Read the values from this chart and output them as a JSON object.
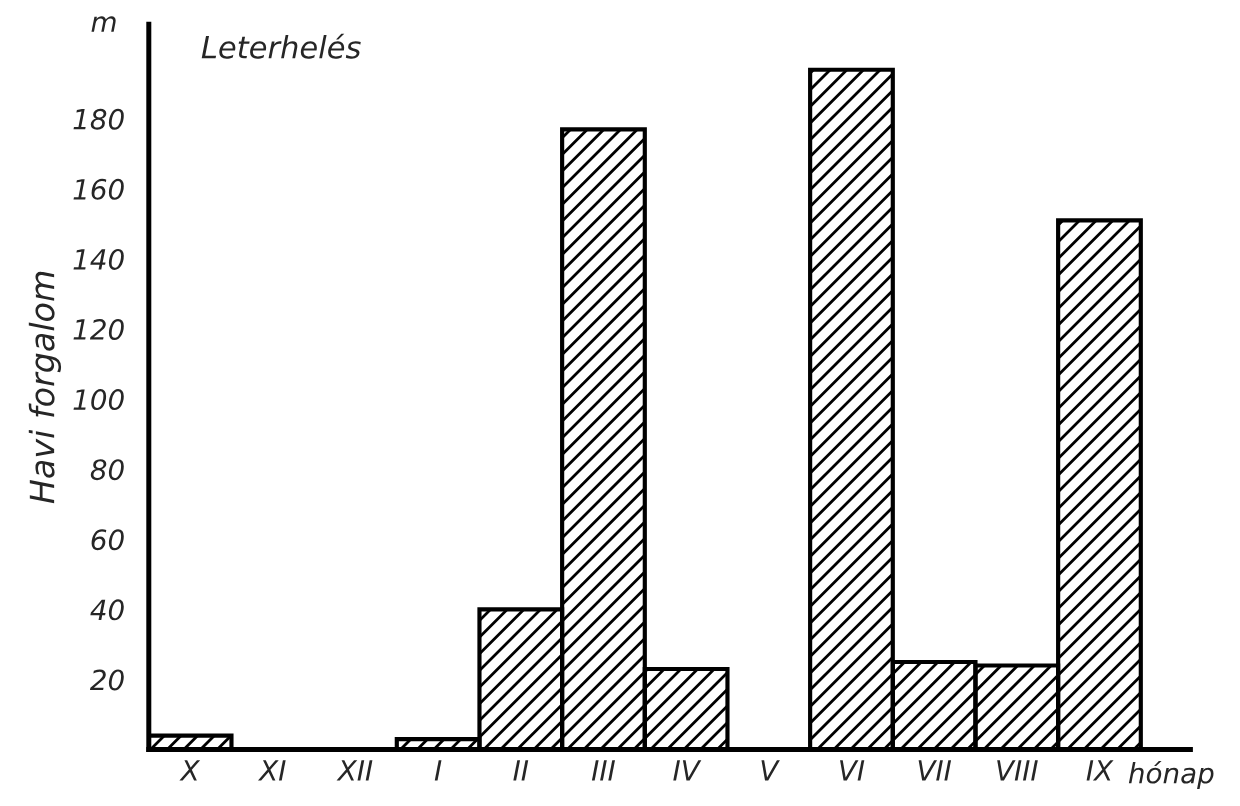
{
  "chart_data": {
    "type": "bar",
    "title": "Leterhelés",
    "ylabel": "Havi forgalom",
    "xlabel": "hónap",
    "annotations": [
      "m"
    ],
    "categories": [
      "X",
      "XI",
      "XII",
      "I",
      "II",
      "III",
      "IV",
      "V",
      "VI",
      "VII",
      "VIII",
      "IX"
    ],
    "values": [
      4,
      0,
      0,
      3,
      40,
      177,
      23,
      0,
      194,
      25,
      24,
      151
    ],
    "color": "#000000",
    "ylim": [
      0,
      207
    ],
    "yticks": [
      20,
      40,
      60,
      80,
      100,
      120,
      140,
      160,
      180
    ],
    "grid": false,
    "legend": false
  }
}
